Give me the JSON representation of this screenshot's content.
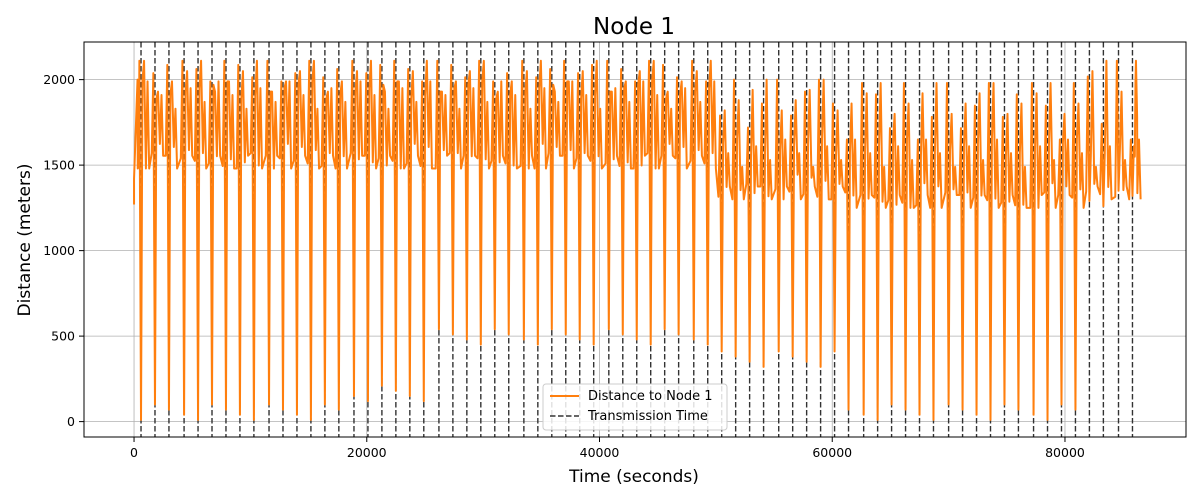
{
  "chart_data": {
    "type": "line",
    "title": "Node 1",
    "xlabel": "Time (seconds)",
    "ylabel": "Distance (meters)",
    "xlim": [
      -4300,
      90400
    ],
    "ylim": [
      -90,
      2220
    ],
    "x_ticks": [
      0,
      20000,
      40000,
      60000,
      80000
    ],
    "x_tick_labels": [
      "0",
      "20000",
      "40000",
      "60000",
      "80000"
    ],
    "y_ticks": [
      0,
      500,
      1000,
      1500,
      2000
    ],
    "y_tick_labels": [
      "0",
      "500",
      "1000",
      "1500",
      "2000"
    ],
    "grid": true,
    "legend_position": "lower center",
    "colors": {
      "distance": "#ff7f0e",
      "transmission": "#333333",
      "grid": "#b0b0b0"
    },
    "series": [
      {
        "name": "Distance to Node 1",
        "kind": "line",
        "color": "#ff7f0e",
        "phases": [
          {
            "x_start": 0,
            "x_end": 18000,
            "low": 10,
            "high": 2110,
            "mid_low": 1480,
            "mid_high": 1990
          },
          {
            "x_start": 18000,
            "x_end": 25500,
            "low": 120,
            "high": 2110,
            "mid_low": 1480,
            "mid_high": 1990
          },
          {
            "x_start": 25500,
            "x_end": 50000,
            "low": 450,
            "high": 2110,
            "mid_low": 1480,
            "mid_high": 1990
          },
          {
            "x_start": 50000,
            "x_end": 61000,
            "low": 320,
            "high": 2000,
            "mid_low": 1300,
            "mid_high": 1650
          },
          {
            "x_start": 61000,
            "x_end": 82000,
            "low": 10,
            "high": 1980,
            "mid_low": 1250,
            "mid_high": 1650
          },
          {
            "x_start": 82000,
            "x_end": 86200,
            "low": 1260,
            "high": 2110,
            "mid_low": 1300,
            "mid_high": 1650
          }
        ]
      },
      {
        "name": "Transmission Time",
        "kind": "vertical-dashed-lines",
        "color": "#333333",
        "values": [
          600,
          1800,
          3000,
          4300,
          5500,
          6700,
          7900,
          9100,
          10300,
          11600,
          12800,
          14000,
          15200,
          16400,
          17600,
          18900,
          20100,
          21300,
          22500,
          23700,
          24900,
          26200,
          27400,
          28600,
          29800,
          31000,
          32200,
          33500,
          34700,
          35900,
          37100,
          38300,
          39500,
          40800,
          42000,
          43200,
          44400,
          45600,
          46800,
          48100,
          49300,
          50500,
          51700,
          52900,
          54100,
          55400,
          56600,
          57800,
          59000,
          60200,
          61400,
          62700,
          63900,
          65100,
          66300,
          67500,
          68700,
          70000,
          71200,
          72400,
          73600,
          74800,
          76000,
          77300,
          78500,
          79700,
          80900,
          82100,
          83300,
          84600,
          85800
        ]
      }
    ]
  }
}
